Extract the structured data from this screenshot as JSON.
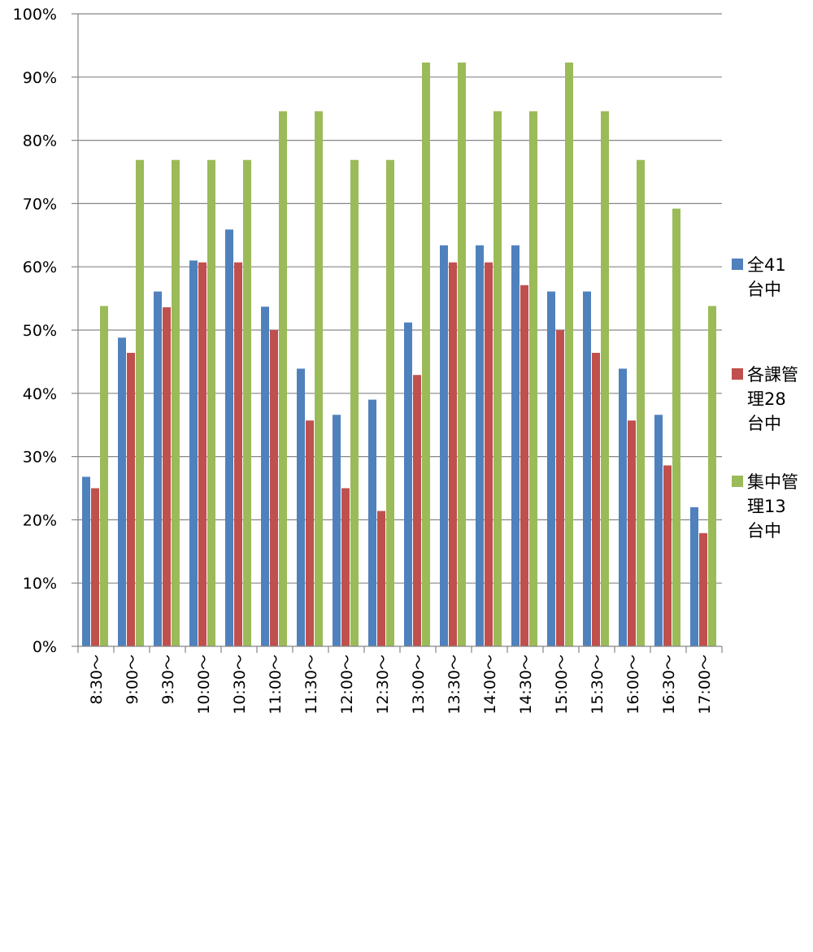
{
  "chart_data": {
    "type": "bar",
    "categories": [
      "8:30～",
      "9:00～",
      "9:30～",
      "10:00～",
      "10:30～",
      "11:00～",
      "11:30～",
      "12:00～",
      "12:30～",
      "13:00～",
      "13:30～",
      "14:00～",
      "14:30～",
      "15:00～",
      "15:30～",
      "16:00～",
      "16:30～",
      "17:00～"
    ],
    "series": [
      {
        "name": "全41台中",
        "legend_lines": [
          "全41",
          "台中"
        ],
        "color": "#4F81BD",
        "values": [
          26.8,
          48.8,
          56.1,
          61.0,
          65.9,
          53.7,
          43.9,
          36.6,
          39.0,
          51.2,
          63.4,
          63.4,
          63.4,
          56.1,
          56.1,
          43.9,
          36.6,
          22.0
        ]
      },
      {
        "name": "各課管理28台中",
        "legend_lines": [
          "各課管",
          "理28",
          "台中"
        ],
        "color": "#C0504D",
        "values": [
          25.0,
          46.4,
          53.6,
          60.7,
          60.7,
          50.0,
          35.7,
          25.0,
          21.4,
          42.9,
          60.7,
          60.7,
          57.1,
          50.0,
          46.4,
          35.7,
          28.6,
          17.9
        ]
      },
      {
        "name": "集中管理13台中",
        "legend_lines": [
          "集中管",
          "理13",
          "台中"
        ],
        "color": "#9BBB59",
        "values": [
          53.8,
          76.9,
          76.9,
          76.9,
          76.9,
          84.6,
          84.6,
          76.9,
          76.9,
          92.3,
          92.3,
          84.6,
          84.6,
          92.3,
          84.6,
          76.9,
          69.2,
          53.8
        ]
      }
    ],
    "yticks": [
      "0%",
      "10%",
      "20%",
      "30%",
      "40%",
      "50%",
      "60%",
      "70%",
      "80%",
      "90%",
      "100%"
    ],
    "ylim": [
      0,
      100
    ],
    "grid": true,
    "legend_position": "right",
    "colors": {
      "gridline": "#868686",
      "axis": "#868686"
    }
  }
}
